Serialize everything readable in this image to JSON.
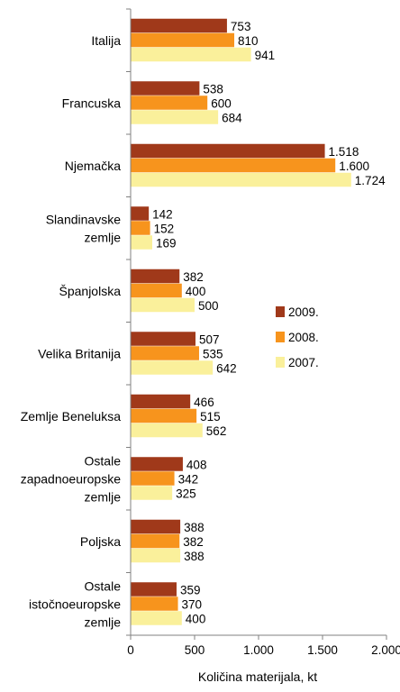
{
  "chart_data": {
    "type": "bar",
    "orientation": "horizontal",
    "categories": [
      [
        "Italija"
      ],
      [
        "Francuska"
      ],
      [
        "Njemačka"
      ],
      [
        "Slandinavske",
        "zemlje"
      ],
      [
        "Španjolska"
      ],
      [
        "Velika Britanija"
      ],
      [
        "Zemlje Beneluksa"
      ],
      [
        "Ostale",
        "zapadnoeuropske",
        "zemlje"
      ],
      [
        "Poljska"
      ],
      [
        "Ostale",
        "istočnoeuropske",
        "zemlje"
      ]
    ],
    "series": [
      {
        "name": "2009.",
        "color": "#A0391A",
        "values": [
          753,
          538,
          1518,
          142,
          382,
          507,
          466,
          408,
          388,
          359
        ],
        "labels": [
          "753",
          "538",
          "1.518",
          "142",
          "382",
          "507",
          "466",
          "408",
          "388",
          "359"
        ]
      },
      {
        "name": "2008.",
        "color": "#F7941D",
        "values": [
          810,
          600,
          1600,
          152,
          400,
          535,
          515,
          342,
          382,
          370
        ],
        "labels": [
          "810",
          "600",
          "1.600",
          "152",
          "400",
          "535",
          "515",
          "342",
          "382",
          "370"
        ]
      },
      {
        "name": "2007.",
        "color": "#FAF09B",
        "values": [
          941,
          684,
          1724,
          169,
          500,
          642,
          562,
          325,
          388,
          400
        ],
        "labels": [
          "941",
          "684",
          "1.724",
          "169",
          "500",
          "642",
          "562",
          "325",
          "388",
          "400"
        ]
      }
    ],
    "xlabel": "Količina materijala, kt",
    "xlim": [
      0,
      2000
    ],
    "xticks": [
      0,
      500,
      1000,
      1500,
      2000
    ],
    "xtick_labels": [
      "0",
      "500",
      "1.000",
      "1.500",
      "2.000"
    ],
    "legend_placement": "right",
    "grid": false
  }
}
